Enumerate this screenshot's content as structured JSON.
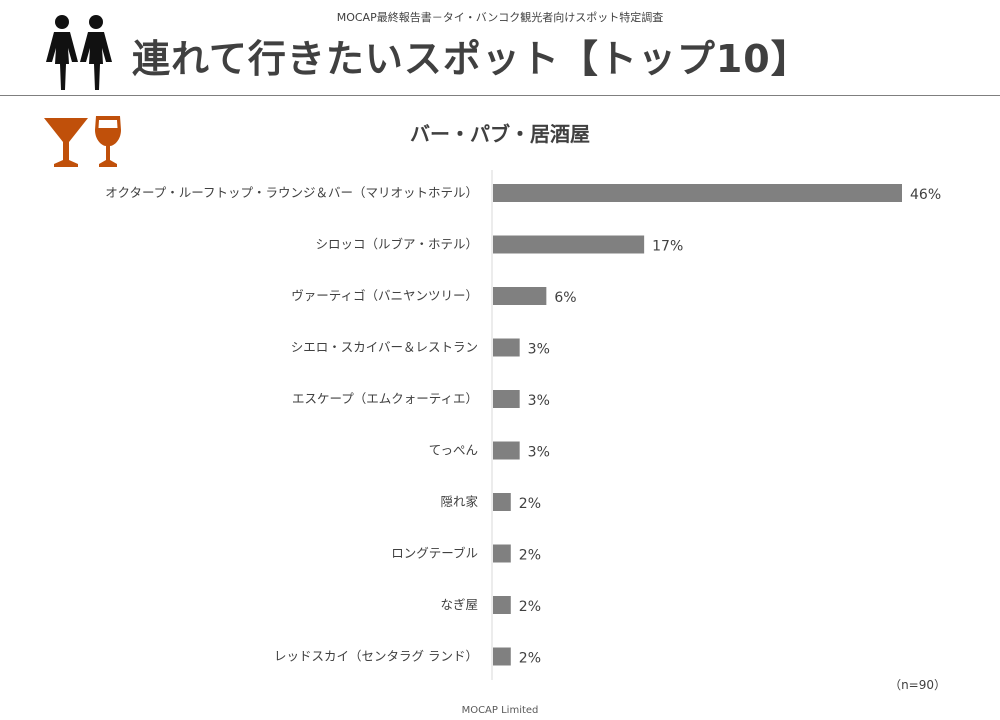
{
  "header": {
    "subtitle": "MOCAP最終報告書－タイ・バンコク観光者向けスポット特定調査",
    "title": "連れて行きたいスポット【トップ10】",
    "people_icon": "couple-icon",
    "glass_icon": "cocktail-and-wine-glass-icon",
    "icon_color": "#C0500A"
  },
  "chart_data": {
    "type": "bar",
    "orientation": "horizontal",
    "title": "バー・パブ・居酒屋",
    "categories": [
      "オクタープ・ルーフトップ・ラウンジ＆バー（マリオットホテル）",
      "シロッコ（ルブア・ホテル）",
      "ヴァーティゴ（バニヤンツリー）",
      "シエロ・スカイバー＆レストラン",
      "エスケープ（エムクォーティエ）",
      "てっぺん",
      "隠れ家",
      "ロングテーブル",
      "なぎ屋",
      "レッドスカイ（センタラグ ランド）"
    ],
    "values": [
      46,
      17,
      6,
      3,
      3,
      3,
      2,
      2,
      2,
      2
    ],
    "value_labels": [
      "46%",
      "17%",
      "6%",
      "3%",
      "3%",
      "3%",
      "2%",
      "2%",
      "2%",
      "2%"
    ],
    "unit": "%",
    "xlim": [
      0,
      50
    ],
    "bar_color": "#808080",
    "grid": false
  },
  "note": "（n=90）",
  "footer": "MOCAP Limited"
}
